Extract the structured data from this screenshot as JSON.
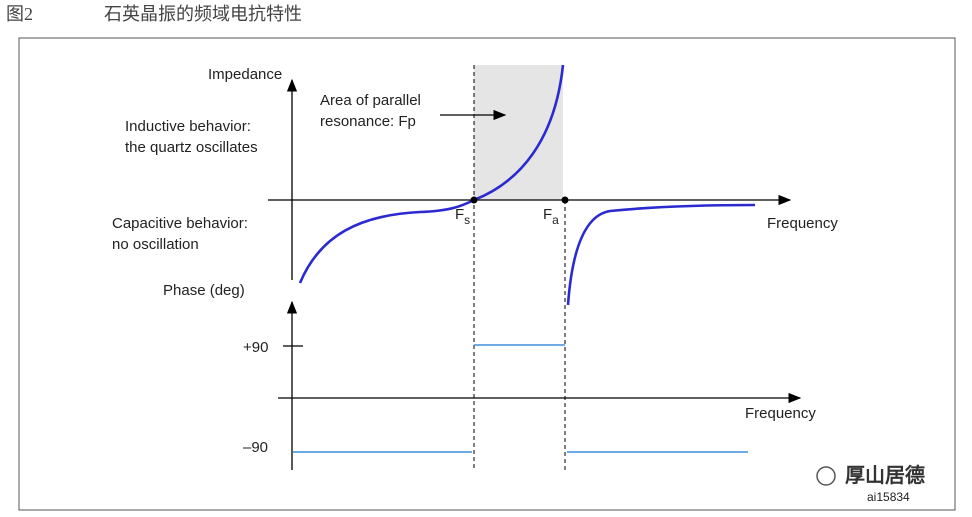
{
  "caption": {
    "figure": "图2",
    "title": "石英晶振的频域电抗特性"
  },
  "impedance_plot": {
    "axis_label": "Impedance",
    "x_label": "Frequency",
    "annotation": [
      "Area of parallel",
      "resonance: Fp"
    ],
    "inductive": [
      "Inductive behavior:",
      "the quartz oscillates"
    ],
    "capacitive": [
      "Capacitive behavior:",
      "no oscillation"
    ],
    "fs": {
      "main": "F",
      "sub": "s"
    },
    "fa": {
      "main": "F",
      "sub": "a"
    }
  },
  "phase_plot": {
    "axis_label": "Phase (deg)",
    "x_label": "Frequency",
    "plus": "+90",
    "minus": "–90"
  },
  "code": "ai15834",
  "watermark": "厚山居德"
}
